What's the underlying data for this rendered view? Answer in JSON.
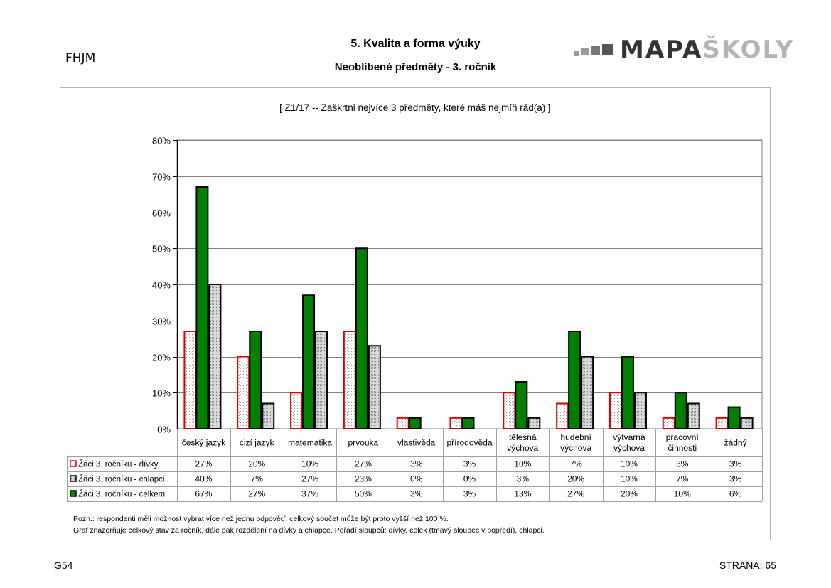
{
  "header": {
    "school_code": "FHJM",
    "title": "5. Kvalita a forma výuky",
    "subtitle": "Neoblíbené předměty - 3. ročník",
    "logo_text_dark": "MAPA",
    "logo_text_light": "ŠKOLY"
  },
  "chart_data": {
    "type": "bar",
    "title": "[ Z1/17 -- Zaškrtni nejvíce 3 předměty, které máš nejmíň rád(a) ]",
    "ylim": [
      0,
      80
    ],
    "yticks": [
      "0%",
      "10%",
      "20%",
      "30%",
      "40%",
      "50%",
      "60%",
      "70%",
      "80%"
    ],
    "grid": true,
    "categories": [
      [
        "český jazyk"
      ],
      [
        "cizí jazyk"
      ],
      [
        "matematika"
      ],
      [
        "prvouka"
      ],
      [
        "vlastivěda"
      ],
      [
        "přírodověda"
      ],
      [
        "tělesná",
        "výchova"
      ],
      [
        "hudební",
        "výchova"
      ],
      [
        "výtvarná",
        "výchova"
      ],
      [
        "pracovní",
        "činnosti"
      ],
      [
        "žádný"
      ]
    ],
    "series": [
      {
        "name": "Žáci 3. ročníku - dívky",
        "values": [
          27,
          20,
          10,
          27,
          3,
          3,
          10,
          7,
          10,
          3,
          3
        ],
        "labels": [
          "27%",
          "20%",
          "10%",
          "27%",
          "3%",
          "3%",
          "10%",
          "7%",
          "10%",
          "3%",
          "3%"
        ],
        "border": "#e00000",
        "fill": "dots"
      },
      {
        "name": "Žáci 3. ročníku - chlapci",
        "values": [
          40,
          7,
          27,
          23,
          0,
          0,
          3,
          20,
          10,
          7,
          3
        ],
        "labels": [
          "40%",
          "7%",
          "27%",
          "23%",
          "0%",
          "0%",
          "3%",
          "20%",
          "10%",
          "7%",
          "3%"
        ],
        "border": "#000000",
        "fill": "hatch"
      },
      {
        "name": "Žáci 3. ročníku - celkem",
        "values": [
          67,
          27,
          37,
          50,
          3,
          3,
          13,
          27,
          20,
          10,
          6
        ],
        "labels": [
          "67%",
          "27%",
          "37%",
          "50%",
          "3%",
          "3%",
          "13%",
          "27%",
          "20%",
          "10%",
          "6%"
        ],
        "border": "#000000",
        "fill": "#008000"
      }
    ]
  },
  "note_lines": [
    "Pozn.: respondenti měli možnost vybrat  více než jednu odpověď, celkový součet může být proto vyšší než 100 %.",
    "Graf znázorňuje celkový stav za ročník, dále pak rozdělení na dívky a chlapce. Pořadí sloupců: dívky, celek (tmavý sloupec v popředí), chlapci."
  ],
  "footer": {
    "left": "G54",
    "right": "STRANA: 65"
  }
}
